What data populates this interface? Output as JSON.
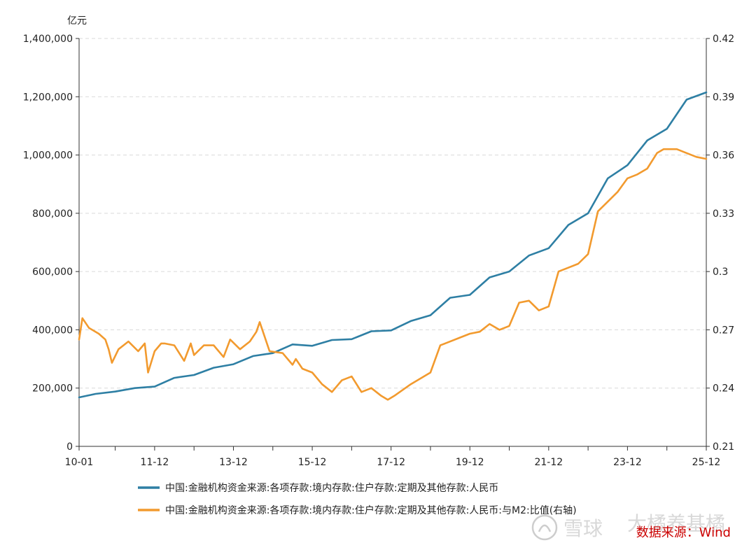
{
  "chart_data": {
    "type": "line",
    "y_unit": "亿元",
    "x_tick_labels": [
      "10-01",
      "11-12",
      "13-12",
      "15-12",
      "17-12",
      "19-12",
      "21-12",
      "23-12",
      "25-12"
    ],
    "x_tick_dates": [
      "2010-01",
      "2011-12",
      "2013-12",
      "2015-12",
      "2017-12",
      "2019-12",
      "2021-12",
      "2023-12",
      "2025-12"
    ],
    "xlim": [
      "2010-01",
      "2025-12"
    ],
    "left_axis": {
      "ylim": [
        0,
        1400000
      ],
      "ticks": [
        0,
        200000,
        400000,
        600000,
        800000,
        1000000,
        1200000,
        1400000
      ],
      "tick_labels": [
        "0",
        "200,000",
        "400,000",
        "600,000",
        "800,000",
        "1,000,000",
        "1,200,000",
        "1,400,000"
      ]
    },
    "right_axis": {
      "ylim": [
        0.21,
        0.42
      ],
      "ticks": [
        0.21,
        0.24,
        0.27,
        0.3,
        0.33,
        0.36,
        0.39,
        0.42
      ],
      "tick_labels": [
        "0.21",
        "0.24",
        "0.27",
        "0.3",
        "0.33",
        "0.36",
        "0.39",
        "0.42"
      ]
    },
    "grid": "horizontal-dashed",
    "legend_position": "bottom",
    "series": [
      {
        "name": "中国:金融机构资金来源:各项存款:境内存款:住户存款:定期及其他存款:人民币",
        "color": "#2e7fa4",
        "axis": "left",
        "x": [
          "2010-01",
          "2010-06",
          "2010-12",
          "2011-06",
          "2011-12",
          "2012-06",
          "2012-12",
          "2013-06",
          "2013-12",
          "2014-06",
          "2014-12",
          "2015-06",
          "2015-12",
          "2016-06",
          "2016-12",
          "2017-06",
          "2017-12",
          "2018-06",
          "2018-12",
          "2019-06",
          "2019-12",
          "2020-06",
          "2020-12",
          "2021-06",
          "2021-12",
          "2022-06",
          "2022-12",
          "2023-06",
          "2023-12",
          "2024-06",
          "2024-12",
          "2025-06",
          "2025-12"
        ],
        "y": [
          168000,
          180000,
          188000,
          200000,
          205000,
          235000,
          245000,
          270000,
          282000,
          310000,
          320000,
          350000,
          345000,
          365000,
          368000,
          395000,
          398000,
          430000,
          450000,
          510000,
          520000,
          580000,
          600000,
          655000,
          680000,
          760000,
          800000,
          920000,
          965000,
          1050000,
          1090000,
          1190000,
          1215000
        ]
      },
      {
        "name": "中国:金融机构资金来源:各项存款:境内存款:住户存款:定期及其他存款:人民币:与M2:比值(右轴)",
        "color": "#f29a2e",
        "axis": "right",
        "x": [
          "2010-01",
          "2010-02",
          "2010-04",
          "2010-07",
          "2010-09",
          "2010-10",
          "2010-11",
          "2011-01",
          "2011-04",
          "2011-07",
          "2011-09",
          "2011-10",
          "2011-12",
          "2012-02",
          "2012-03",
          "2012-06",
          "2012-09",
          "2012-11",
          "2012-12",
          "2013-03",
          "2013-06",
          "2013-09",
          "2013-11",
          "2014-02",
          "2014-05",
          "2014-07",
          "2014-08",
          "2014-11",
          "2015-03",
          "2015-06",
          "2015-07",
          "2015-09",
          "2015-12",
          "2016-03",
          "2016-06",
          "2016-09",
          "2016-12",
          "2017-03",
          "2017-06",
          "2017-09",
          "2017-11",
          "2018-01",
          "2018-06",
          "2018-12",
          "2019-03",
          "2019-06",
          "2019-09",
          "2019-12",
          "2020-03",
          "2020-06",
          "2020-09",
          "2020-12",
          "2021-03",
          "2021-06",
          "2021-09",
          "2021-12",
          "2022-03",
          "2022-06",
          "2022-09",
          "2022-12",
          "2023-03",
          "2023-06",
          "2023-09",
          "2023-12",
          "2024-03",
          "2024-06",
          "2024-09",
          "2024-11",
          "2025-03",
          "2025-06",
          "2025-09",
          "2025-12"
        ],
        "y": [
          0.265,
          0.276,
          0.271,
          0.268,
          0.265,
          0.26,
          0.253,
          0.26,
          0.264,
          0.259,
          0.263,
          0.248,
          0.259,
          0.263,
          0.263,
          0.262,
          0.254,
          0.263,
          0.257,
          0.262,
          0.262,
          0.256,
          0.265,
          0.26,
          0.264,
          0.269,
          0.274,
          0.259,
          0.258,
          0.252,
          0.255,
          0.25,
          0.248,
          0.242,
          0.238,
          0.244,
          0.246,
          0.238,
          0.24,
          0.236,
          0.234,
          0.236,
          0.242,
          0.248,
          0.262,
          0.264,
          0.266,
          0.268,
          0.269,
          0.273,
          0.27,
          0.272,
          0.284,
          0.285,
          0.28,
          0.282,
          0.3,
          0.302,
          0.304,
          0.309,
          0.331,
          0.336,
          0.341,
          0.348,
          0.35,
          0.353,
          0.361,
          0.363,
          0.363,
          0.361,
          0.359,
          0.358
        ]
      }
    ]
  },
  "source_label": "数据来源：Wind",
  "watermark": {
    "xueqiu": "雪球",
    "author": "大橘养基橘"
  }
}
